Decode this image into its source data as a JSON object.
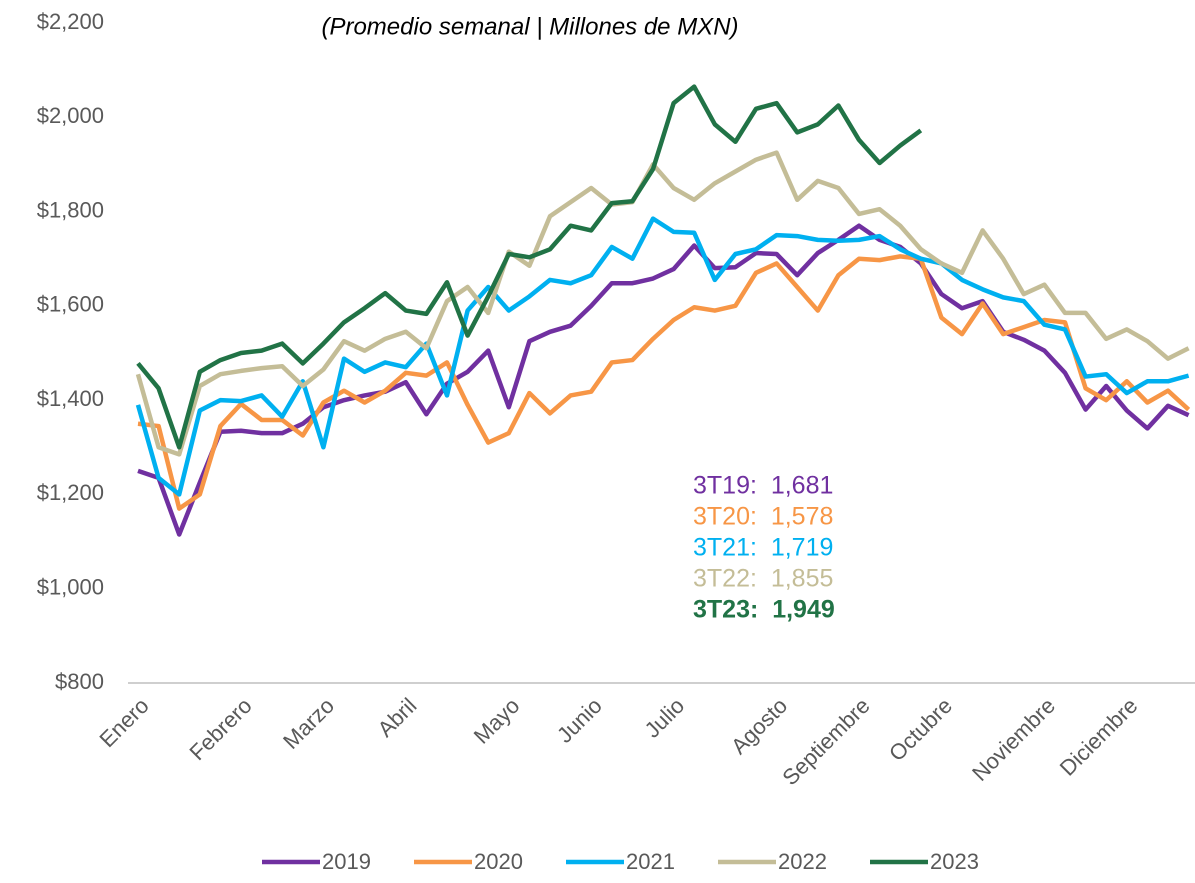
{
  "chart_data": {
    "type": "line",
    "title": "(Promedio semanal | Millones de MXN)",
    "categories": [
      "Enero",
      null,
      null,
      null,
      null,
      "Febrero",
      null,
      null,
      null,
      "Marzo",
      null,
      null,
      null,
      "Abril",
      null,
      null,
      null,
      null,
      "Mayo",
      null,
      null,
      null,
      "Junio",
      null,
      null,
      null,
      "Julio",
      null,
      null,
      null,
      null,
      "Agosto",
      null,
      null,
      null,
      "Septiembre",
      null,
      null,
      null,
      "Octubre",
      null,
      null,
      null,
      null,
      "Noviembre",
      null,
      null,
      null,
      "Diciembre",
      null,
      null,
      null
    ],
    "ylim": [
      800,
      2200
    ],
    "yticks": [
      {
        "value": 800,
        "label": "$800"
      },
      {
        "value": 1000,
        "label": "$1,000"
      },
      {
        "value": 1200,
        "label": "$1,200"
      },
      {
        "value": 1400,
        "label": "$1,400"
      },
      {
        "value": 1600,
        "label": "$1,600"
      },
      {
        "value": 1800,
        "label": "$1,800"
      },
      {
        "value": 2000,
        "label": "$2,000"
      },
      {
        "value": 2200,
        "label": "$2,200"
      }
    ],
    "grid": false,
    "legend": "bottom",
    "series": [
      {
        "name": "2019",
        "color": "#7030a0",
        "values": [
          1250,
          1235,
          1115,
          1225,
          1333,
          1335,
          1330,
          1330,
          1350,
          1385,
          1400,
          1410,
          1418,
          1438,
          1370,
          1435,
          1460,
          1505,
          1385,
          1525,
          1545,
          1558,
          1600,
          1648,
          1648,
          1658,
          1678,
          1728,
          1680,
          1682,
          1712,
          1710,
          1665,
          1712,
          1740,
          1770,
          1740,
          1725,
          1690,
          1625,
          1595,
          1610,
          1545,
          1528,
          1505,
          1458,
          1380,
          1430,
          1378,
          1340,
          1388,
          1368
        ]
      },
      {
        "name": "2020",
        "color": "#f79646",
        "values": [
          1350,
          1345,
          1170,
          1200,
          1345,
          1392,
          1358,
          1358,
          1325,
          1395,
          1420,
          1395,
          1420,
          1458,
          1452,
          1480,
          1390,
          1310,
          1330,
          1415,
          1372,
          1410,
          1418,
          1480,
          1485,
          1530,
          1570,
          1597,
          1590,
          1600,
          1670,
          1690,
          1640,
          1590,
          1665,
          1700,
          1697,
          1705,
          1700,
          1575,
          1540,
          1605,
          1540,
          1555,
          1570,
          1565,
          1425,
          1400,
          1440,
          1395,
          1420,
          1380
        ]
      },
      {
        "name": "2021",
        "color": "#00b0f0",
        "values": [
          1390,
          1235,
          1200,
          1378,
          1400,
          1398,
          1410,
          1365,
          1440,
          1300,
          1488,
          1460,
          1480,
          1470,
          1520,
          1410,
          1590,
          1640,
          1590,
          1620,
          1655,
          1648,
          1665,
          1725,
          1700,
          1785,
          1757,
          1755,
          1655,
          1710,
          1720,
          1750,
          1748,
          1740,
          1738,
          1740,
          1748,
          1720,
          1700,
          1690,
          1655,
          1635,
          1618,
          1610,
          1560,
          1550,
          1450,
          1455,
          1415,
          1440,
          1440,
          1452
        ]
      },
      {
        "name": "2022",
        "color": "#c4bd97",
        "values": [
          1455,
          1300,
          1285,
          1430,
          1455,
          1462,
          1468,
          1472,
          1430,
          1465,
          1525,
          1505,
          1530,
          1545,
          1510,
          1610,
          1640,
          1585,
          1715,
          1685,
          1790,
          1820,
          1850,
          1815,
          1820,
          1900,
          1850,
          1825,
          1860,
          1885,
          1910,
          1925,
          1825,
          1865,
          1850,
          1795,
          1805,
          1770,
          1720,
          1690,
          1670,
          1760,
          1700,
          1625,
          1645,
          1585,
          1585,
          1530,
          1550,
          1525,
          1488,
          1510
        ]
      },
      {
        "name": "2023",
        "color": "#217346",
        "values": [
          1478,
          1425,
          1300,
          1460,
          1485,
          1500,
          1505,
          1520,
          1478,
          1520,
          1565,
          1595,
          1627,
          1590,
          1583,
          1650,
          1537,
          1620,
          1710,
          1703,
          1720,
          1770,
          1760,
          1818,
          1822,
          1890,
          2030,
          2065,
          1985,
          1948,
          2018,
          2030,
          1968,
          1985,
          2025,
          1952,
          1903,
          1940,
          1972,
          null,
          null,
          null,
          null,
          null,
          null,
          null,
          null,
          null,
          null,
          null,
          null,
          null
        ]
      }
    ],
    "annotations": [
      {
        "text": "3T19:  1,681",
        "color": "#7030a0",
        "bold": false
      },
      {
        "text": "3T20:  1,578",
        "color": "#f79646",
        "bold": false
      },
      {
        "text": "3T21:  1,719",
        "color": "#00b0f0",
        "bold": false
      },
      {
        "text": "3T22:  1,855",
        "color": "#c4bd97",
        "bold": false
      },
      {
        "text": "3T23:  1,949",
        "color": "#217346",
        "bold": true
      }
    ]
  }
}
